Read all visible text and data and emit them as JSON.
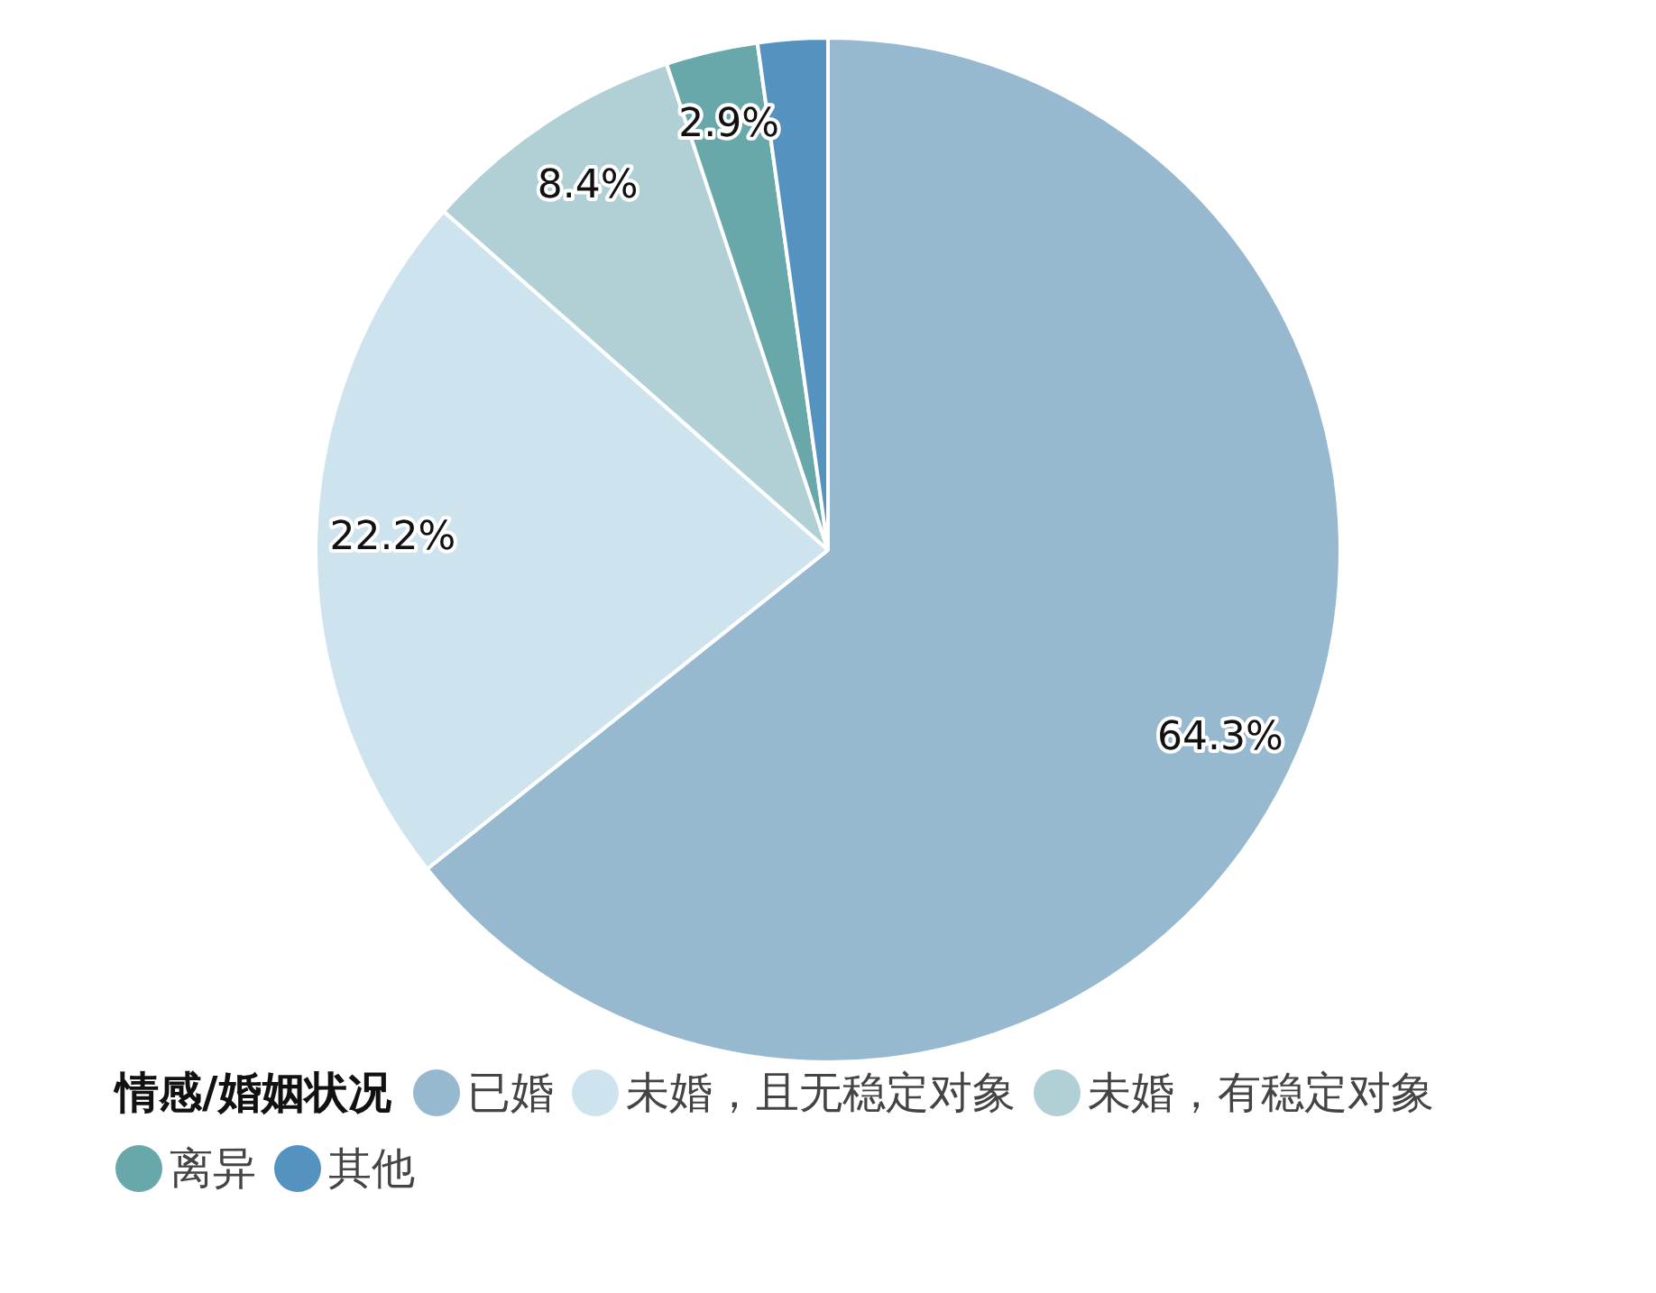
{
  "chart_data": {
    "type": "pie",
    "legend_title": "情感/婚姻状况",
    "legend": "bottom",
    "categories": [
      "已婚",
      "未婚，且无稳定对象",
      "未婚，有稳定对象",
      "离异",
      "其他"
    ],
    "values": [
      64.3,
      22.2,
      8.4,
      2.9,
      2.2
    ],
    "colors": [
      "#97b9cf",
      "#cde4ef",
      "#b0d0d5",
      "#68a8aa",
      "#5493c0"
    ],
    "value_labels": [
      "64.3%",
      "22.2%",
      "8.4%",
      "2.9%",
      null
    ]
  }
}
